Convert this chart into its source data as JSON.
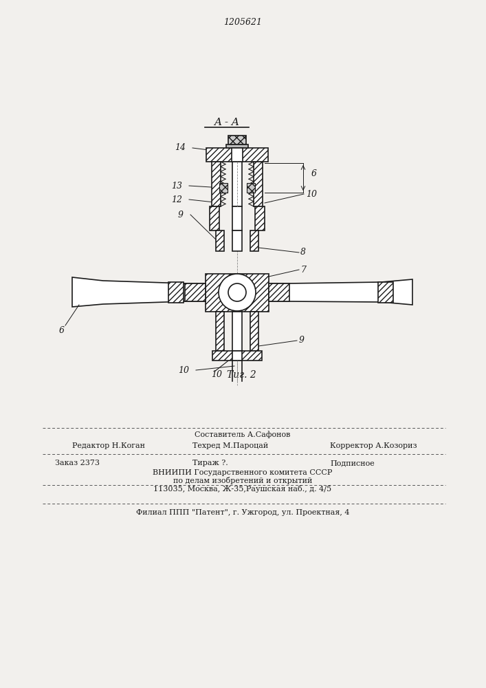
{
  "patent_number": "1205621",
  "section_label": "A - A",
  "bg_color": "#f2f0ed",
  "line_color": "#1a1a1a",
  "text_color": "#1a1a1a",
  "footer_line1": "Составитель А.Сафонов",
  "footer_editor": "Редактор Н.Коган",
  "footer_techred": "Техред М.Пароцай",
  "footer_corrector": "Корректор А.Козориз",
  "footer_order": "Заказ 2373",
  "footer_tirazh": "Тираж ?.",
  "footer_podpisnoe": "Подписное",
  "footer_vniipи": "ВНИИПИ Государственного комитета СССР",
  "footer_dela": "по делам изобретений и открытий",
  "footer_addr": "113035, Москва, Ж-35,Раушская наб., д. 4/5",
  "footer_filial": "Филиал ППП \"Патент\", г. Ужгород, ул. Проектная, 4",
  "fig_label": "Τиг. 2"
}
